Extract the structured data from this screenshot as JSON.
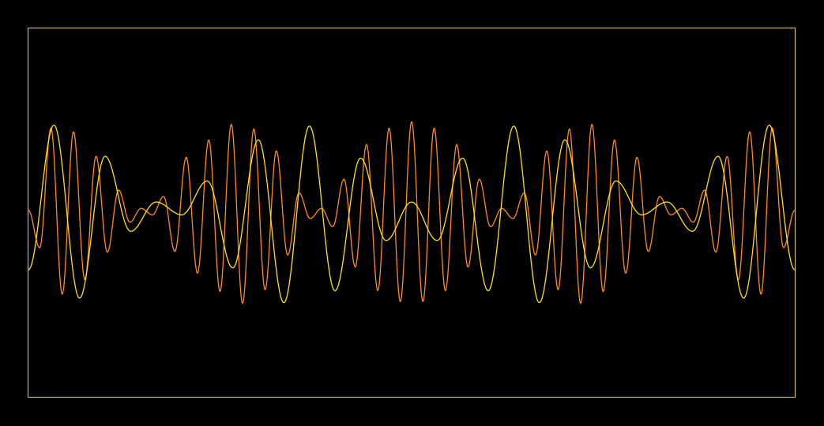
{
  "chart_data": {
    "type": "line",
    "title": "",
    "xlabel": "",
    "ylabel": "",
    "xlim": [
      0,
      1
    ],
    "ylim": [
      -1,
      1
    ],
    "grid": false,
    "legend": "none",
    "series": [
      {
        "color": "#ff8c1a",
        "sample_count": 960,
        "values": [
          0.03,
          -0.38,
          0.93,
          -0.89,
          0.89,
          -0.73,
          0.62,
          -0.43,
          0.25,
          -0.1,
          0.05,
          -0.02,
          0.18,
          -0.42,
          0.61,
          -0.66,
          0.8,
          -0.86,
          0.97,
          -0.99,
          0.92,
          -0.84,
          0.68,
          -0.46,
          0.22,
          -0.06,
          0.05,
          -0.15,
          0.37,
          -0.59,
          0.75,
          -0.85,
          0.93,
          -0.97,
          1.0,
          -0.97,
          0.93,
          -0.85,
          0.75,
          -0.59,
          0.37,
          -0.15,
          0.05,
          -0.06,
          0.22,
          -0.46,
          0.68,
          -0.84,
          0.92,
          -0.99,
          0.97,
          -0.86,
          0.8,
          -0.66,
          0.61,
          -0.42,
          0.18,
          -0.02,
          0.05,
          -0.1,
          0.25,
          -0.43,
          0.62,
          -0.73,
          0.89,
          -0.89,
          0.93,
          -0.38,
          0.03
        ]
      },
      {
        "color": "#ffe01a",
        "sample_count": 960,
        "values": [
          -0.62,
          0.96,
          -0.93,
          0.62,
          -0.2,
          0.12,
          -0.02,
          0.35,
          -0.6,
          0.8,
          -0.98,
          0.95,
          -0.85,
          0.6,
          -0.3,
          0.12,
          -0.3,
          0.6,
          -0.85,
          0.95,
          -0.98,
          0.8,
          -0.6,
          0.35,
          -0.02,
          0.12,
          -0.2,
          0.62,
          -0.93,
          0.96,
          -0.62
        ]
      }
    ]
  }
}
